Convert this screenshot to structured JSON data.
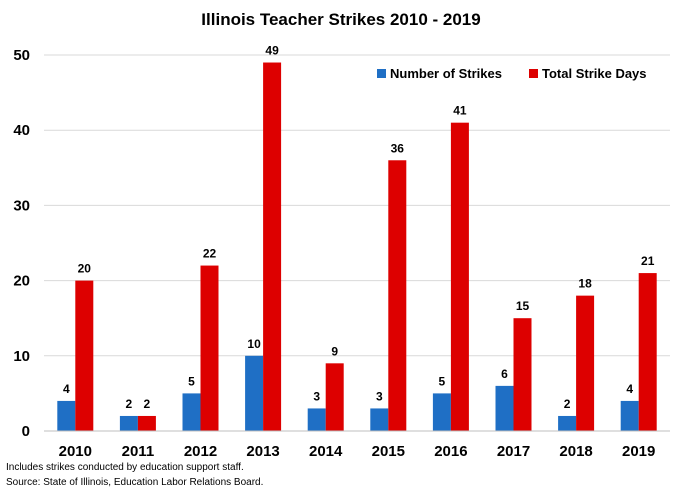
{
  "chart_data": {
    "type": "bar",
    "title": "Illinois Teacher Strikes 2010 - 2019",
    "categories": [
      "2010",
      "2011",
      "2012",
      "2013",
      "2014",
      "2015",
      "2016",
      "2017",
      "2018",
      "2019"
    ],
    "series": [
      {
        "name": "Number of Strikes",
        "color": "#1f6fc5",
        "values": [
          4,
          2,
          5,
          10,
          3,
          3,
          5,
          6,
          2,
          4
        ]
      },
      {
        "name": "Total Strike Days",
        "color": "#dd0000",
        "values": [
          20,
          2,
          22,
          49,
          9,
          36,
          41,
          15,
          18,
          21
        ]
      }
    ],
    "ylim": [
      0,
      50
    ],
    "yticks": [
      0,
      10,
      20,
      30,
      40,
      50
    ],
    "grid": true,
    "legend_position": "top-right",
    "data_labels": true
  },
  "notes": {
    "line1": "Includes strikes conducted by education support staff.",
    "line2": "Source:  State of Illinois, Education Labor Relations Board."
  }
}
